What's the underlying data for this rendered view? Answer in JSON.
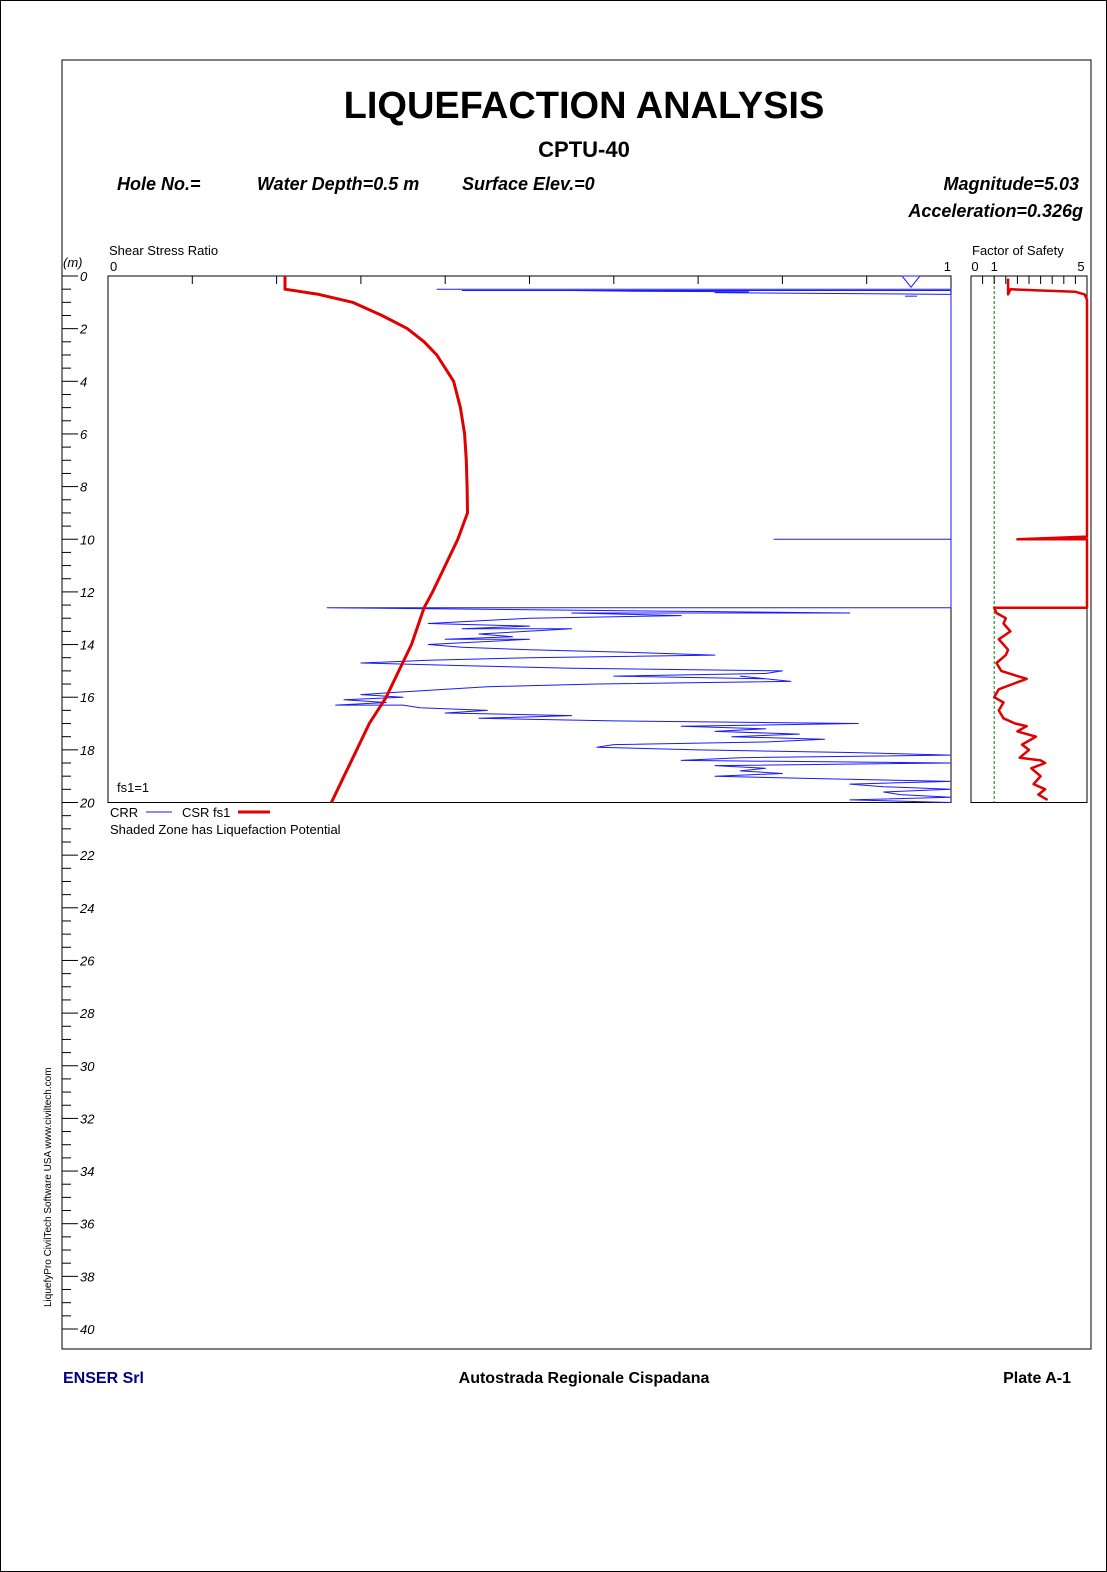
{
  "header": {
    "title": "LIQUEFACTION ANALYSIS",
    "subtitle": "CPTU-40",
    "hole_no": "Hole No.=",
    "water_depth": "Water Depth=0.5 m",
    "surface_elev": "Surface Elev.=0",
    "magnitude": "Magnitude=5.03",
    "acceleration": "Acceleration=0.326g"
  },
  "footer": {
    "company": "ENSER Srl",
    "project": "Autostrada Regionale Cispadana",
    "plate": "Plate A-1",
    "software": "LiquefyPro     CivilTech Software  USA     www.civiltech.com"
  },
  "colors": {
    "crr": "#1a1aff",
    "csr": "#e00000",
    "fs_line": "#008000",
    "footer_company": "#000080"
  },
  "chart_data": [
    {
      "type": "line",
      "title": "Shear Stress Ratio",
      "depth_unit_label": "(m)",
      "xlim": [
        0,
        1
      ],
      "x_tick_labels": [
        "0",
        "1"
      ],
      "x_minor_ticks": 10,
      "ylim": [
        0,
        20
      ],
      "depth_axis_ticks": [
        0,
        2,
        4,
        6,
        8,
        10,
        12,
        14,
        16,
        18,
        20,
        22,
        24,
        26,
        28,
        30,
        32,
        34,
        36,
        38,
        40
      ],
      "depth_axis_range": [
        0,
        40
      ],
      "water_table_depth": 0.5,
      "annotation": "fs1=1",
      "legend": {
        "crr_label": "CRR",
        "csr_label": "CSR fs1",
        "note": "Shaded Zone has Liquefaction Potential"
      },
      "series": [
        {
          "name": "CRR",
          "points": [
            [
              0.39,
              0.5
            ],
            [
              1.0,
              0.5
            ],
            [
              1.0,
              0.55
            ],
            [
              0.42,
              0.55
            ],
            [
              0.55,
              0.55
            ],
            [
              0.63,
              0.58
            ],
            [
              0.76,
              0.6
            ],
            [
              0.72,
              0.63
            ],
            [
              1.0,
              0.7
            ],
            [
              1.0,
              0.75
            ],
            [
              1.0,
              0.9
            ],
            [
              1.0,
              10.0
            ],
            [
              0.79,
              10.0
            ],
            [
              1.0,
              10.0
            ],
            [
              1.0,
              12.6
            ],
            [
              0.26,
              12.6
            ],
            [
              0.88,
              12.8
            ],
            [
              0.55,
              12.8
            ],
            [
              0.68,
              12.9
            ],
            [
              0.5,
              13.0
            ],
            [
              0.38,
              13.2
            ],
            [
              0.5,
              13.3
            ],
            [
              0.42,
              13.4
            ],
            [
              0.55,
              13.4
            ],
            [
              0.44,
              13.6
            ],
            [
              0.48,
              13.7
            ],
            [
              0.4,
              13.8
            ],
            [
              0.5,
              13.8
            ],
            [
              0.38,
              14.0
            ],
            [
              0.42,
              14.1
            ],
            [
              0.5,
              14.2
            ],
            [
              0.62,
              14.3
            ],
            [
              0.72,
              14.4
            ],
            [
              0.5,
              14.5
            ],
            [
              0.38,
              14.6
            ],
            [
              0.3,
              14.7
            ],
            [
              0.42,
              14.8
            ],
            [
              0.55,
              14.9
            ],
            [
              0.8,
              15.0
            ],
            [
              0.78,
              15.1
            ],
            [
              0.6,
              15.2
            ],
            [
              0.78,
              15.3
            ],
            [
              0.75,
              15.2
            ],
            [
              0.81,
              15.4
            ],
            [
              0.58,
              15.5
            ],
            [
              0.45,
              15.6
            ],
            [
              0.35,
              15.8
            ],
            [
              0.3,
              15.9
            ],
            [
              0.35,
              16.0
            ],
            [
              0.28,
              16.1
            ],
            [
              0.33,
              16.2
            ],
            [
              0.27,
              16.3
            ],
            [
              0.35,
              16.3
            ],
            [
              0.37,
              16.4
            ],
            [
              0.45,
              16.5
            ],
            [
              0.4,
              16.6
            ],
            [
              0.55,
              16.7
            ],
            [
              0.44,
              16.8
            ],
            [
              0.6,
              16.9
            ],
            [
              0.89,
              17.0
            ],
            [
              0.68,
              17.1
            ],
            [
              0.78,
              17.2
            ],
            [
              0.72,
              17.3
            ],
            [
              0.82,
              17.4
            ],
            [
              0.74,
              17.5
            ],
            [
              0.85,
              17.6
            ],
            [
              0.78,
              17.7
            ],
            [
              0.6,
              17.8
            ],
            [
              0.58,
              17.9
            ],
            [
              0.7,
              18.0
            ],
            [
              0.88,
              18.1
            ],
            [
              1.0,
              18.2
            ],
            [
              0.75,
              18.3
            ],
            [
              0.68,
              18.4
            ],
            [
              1.0,
              18.5
            ],
            [
              0.72,
              18.6
            ],
            [
              0.78,
              18.7
            ],
            [
              0.75,
              18.8
            ],
            [
              0.8,
              18.9
            ],
            [
              0.72,
              19.0
            ],
            [
              0.85,
              19.1
            ],
            [
              1.0,
              19.2
            ],
            [
              0.88,
              19.3
            ],
            [
              0.92,
              19.4
            ],
            [
              1.0,
              19.5
            ],
            [
              0.92,
              19.6
            ],
            [
              0.94,
              19.7
            ],
            [
              1.0,
              19.8
            ],
            [
              0.88,
              19.9
            ],
            [
              1.0,
              20.0
            ]
          ]
        },
        {
          "name": "CSR fs1",
          "points": [
            [
              0.21,
              0.0
            ],
            [
              0.21,
              0.5
            ],
            [
              0.25,
              0.7
            ],
            [
              0.29,
              1.0
            ],
            [
              0.325,
              1.5
            ],
            [
              0.355,
              2.0
            ],
            [
              0.375,
              2.5
            ],
            [
              0.39,
              3.0
            ],
            [
              0.4,
              3.5
            ],
            [
              0.41,
              4.0
            ],
            [
              0.418,
              5.0
            ],
            [
              0.423,
              6.0
            ],
            [
              0.425,
              7.0
            ],
            [
              0.426,
              8.0
            ],
            [
              0.4265,
              9.0
            ],
            [
              0.415,
              10.0
            ],
            [
              0.4,
              11.0
            ],
            [
              0.385,
              12.0
            ],
            [
              0.375,
              12.6
            ],
            [
              0.36,
              14.0
            ],
            [
              0.345,
              15.0
            ],
            [
              0.33,
              16.0
            ],
            [
              0.31,
              17.0
            ],
            [
              0.295,
              18.0
            ],
            [
              0.28,
              19.0
            ],
            [
              0.265,
              20.0
            ]
          ]
        }
      ]
    },
    {
      "type": "line",
      "title": "Factor of Safety",
      "xlim": [
        0,
        5
      ],
      "x_tick_labels": [
        "0",
        "1",
        "5"
      ],
      "ylim": [
        0,
        20
      ],
      "reference_line_x": 1,
      "series": [
        {
          "name": "fs1",
          "points": [
            [
              1.6,
              0.1
            ],
            [
              1.6,
              0.7
            ],
            [
              1.7,
              0.5
            ],
            [
              3.0,
              0.55
            ],
            [
              4.5,
              0.6
            ],
            [
              4.9,
              0.7
            ],
            [
              5.0,
              0.9
            ],
            [
              5.0,
              9.9
            ],
            [
              2.0,
              10.0
            ],
            [
              5.0,
              10.0
            ],
            [
              5.0,
              12.6
            ],
            [
              1.0,
              12.6
            ],
            [
              1.1,
              12.8
            ],
            [
              1.5,
              13.0
            ],
            [
              1.4,
              13.2
            ],
            [
              1.7,
              13.5
            ],
            [
              1.2,
              13.8
            ],
            [
              1.4,
              14.0
            ],
            [
              1.6,
              14.2
            ],
            [
              1.5,
              14.4
            ],
            [
              1.1,
              14.7
            ],
            [
              1.3,
              15.0
            ],
            [
              2.0,
              15.2
            ],
            [
              2.4,
              15.3
            ],
            [
              1.8,
              15.5
            ],
            [
              1.2,
              15.7
            ],
            [
              1.0,
              16.0
            ],
            [
              1.4,
              16.2
            ],
            [
              1.2,
              16.5
            ],
            [
              1.4,
              16.8
            ],
            [
              1.9,
              17.0
            ],
            [
              2.4,
              17.1
            ],
            [
              2.0,
              17.3
            ],
            [
              2.8,
              17.5
            ],
            [
              2.2,
              17.8
            ],
            [
              2.5,
              18.0
            ],
            [
              2.1,
              18.3
            ],
            [
              3.0,
              18.4
            ],
            [
              3.2,
              18.5
            ],
            [
              2.6,
              18.7
            ],
            [
              3.0,
              19.0
            ],
            [
              2.7,
              19.3
            ],
            [
              3.2,
              19.5
            ],
            [
              2.9,
              19.7
            ],
            [
              3.3,
              19.9
            ]
          ]
        }
      ]
    }
  ]
}
